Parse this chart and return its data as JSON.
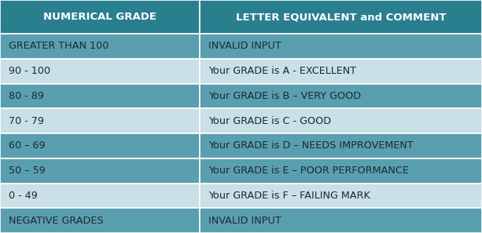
{
  "header": [
    "NUMERICAL GRADE",
    "LETTER EQUIVALENT and COMMENT"
  ],
  "rows": [
    [
      "GREATER THAN 100",
      "INVALID INPUT"
    ],
    [
      "90 - 100",
      "Your GRADE is A - EXCELLENT"
    ],
    [
      "80 - 89",
      "Your GRADE is B – VERY GOOD"
    ],
    [
      "70 - 79",
      "Your GRADE is C - GOOD"
    ],
    [
      "60 – 69",
      "Your GRADE is D – NEEDS IMPROVEMENT"
    ],
    [
      "50 – 59",
      "Your GRADE is E – POOR PERFORMANCE"
    ],
    [
      "0 - 49",
      "Your GRADE is F – FAILING MARK"
    ],
    [
      "NEGATIVE GRADES",
      "INVALID INPUT"
    ]
  ],
  "row_colors": [
    1,
    0,
    1,
    0,
    1,
    1,
    0,
    1
  ],
  "header_bg": "#2a7f8f",
  "header_text_color": "#ffffff",
  "row_bg_dark": "#5a9faf",
  "row_bg_light": "#c8e0e6",
  "row_text_color": "#1c2a30",
  "border_color": "#ffffff",
  "col_split": 0.415,
  "fig_bg": "#2a7f8f",
  "header_fontsize": 9.5,
  "row_fontsize": 9.2
}
